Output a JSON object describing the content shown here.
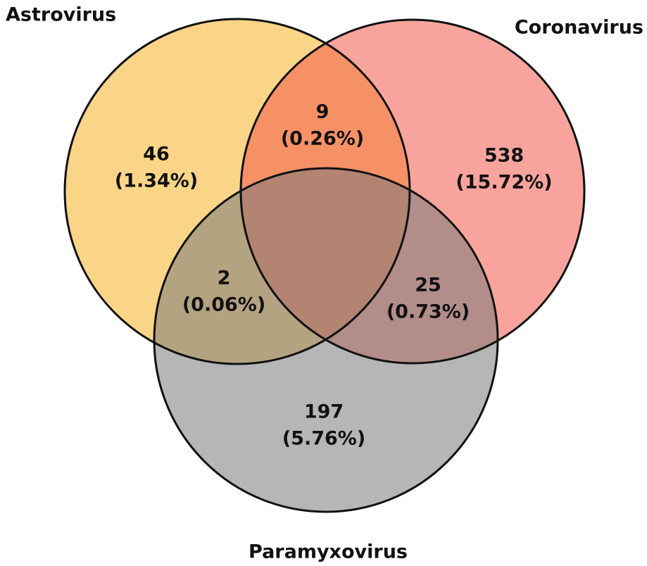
{
  "chart_data": {
    "type": "venn",
    "sets": [
      {
        "name": "Astrovirus",
        "color": "#f5b325"
      },
      {
        "name": "Coronavirus",
        "color": "#f25a4a"
      },
      {
        "name": "Paramyxovirus",
        "color": "#7a7a7a"
      }
    ],
    "regions": [
      {
        "sets": [
          0
        ],
        "value": 46,
        "percent": 1.34,
        "percent_label": "(1.34%)"
      },
      {
        "sets": [
          0,
          1
        ],
        "value": 9,
        "percent": 0.26,
        "percent_label": "(0.26%)"
      },
      {
        "sets": [
          1
        ],
        "value": 538,
        "percent": 15.72,
        "percent_label": "(15.72%)"
      },
      {
        "sets": [
          0,
          2
        ],
        "value": 2,
        "percent": 0.06,
        "percent_label": "(0.06%)"
      },
      {
        "sets": [
          1,
          2
        ],
        "value": 25,
        "percent": 0.73,
        "percent_label": "(0.73%)"
      },
      {
        "sets": [
          2
        ],
        "value": 197,
        "percent": 5.76,
        "percent_label": "(5.76%)"
      }
    ]
  }
}
